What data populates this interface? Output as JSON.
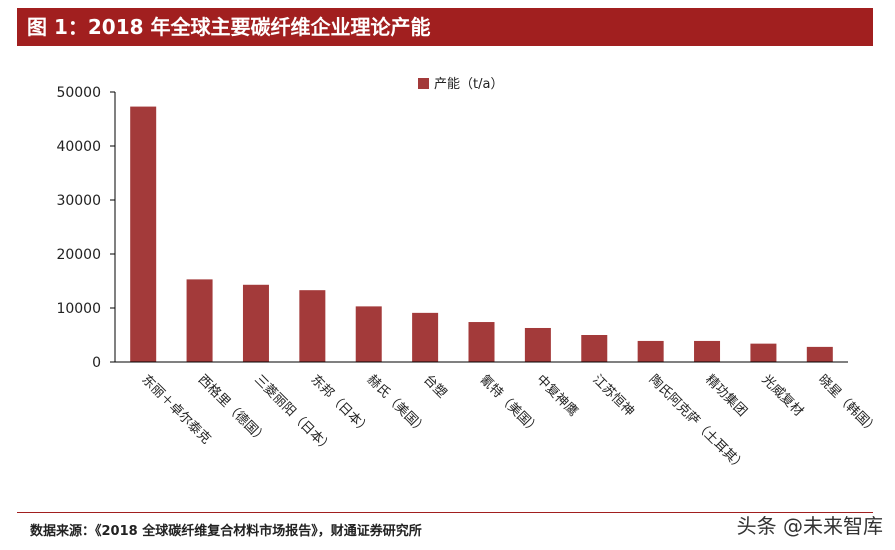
{
  "title": "图 1：2018 年全球主要碳纤维企业理论产能",
  "source": "数据来源：《2018 全球碳纤维复合材料市场报告》，财通证券研究所",
  "watermark": "头条 @未来智库",
  "colors": {
    "bar": "#a33a3a",
    "title_bg": "#a11f1f",
    "axis": "#000000"
  },
  "chart_data": {
    "type": "bar",
    "categories": [
      "东丽＋卓尔泰克",
      "西格里（德国）",
      "三菱丽阳（日本）",
      "东邦（日本）",
      "赫氏（美国）",
      "台塑",
      "氰特（美国）",
      "中复神鹰",
      "江苏恒神",
      "陶氏阿克萨（土耳其）",
      "精功集团",
      "光威复材",
      "晓星（韩国）"
    ],
    "series": [
      {
        "name": "产能（t/a）",
        "values": [
          47300,
          15300,
          14300,
          13300,
          10300,
          9100,
          7400,
          6300,
          5000,
          3900,
          3900,
          3400,
          2800
        ]
      }
    ],
    "ylim": [
      0,
      50000
    ],
    "yticks": [
      0,
      10000,
      20000,
      30000,
      40000,
      50000
    ],
    "xlabel": "",
    "ylabel": "",
    "legend": "top-center",
    "grid": false
  }
}
